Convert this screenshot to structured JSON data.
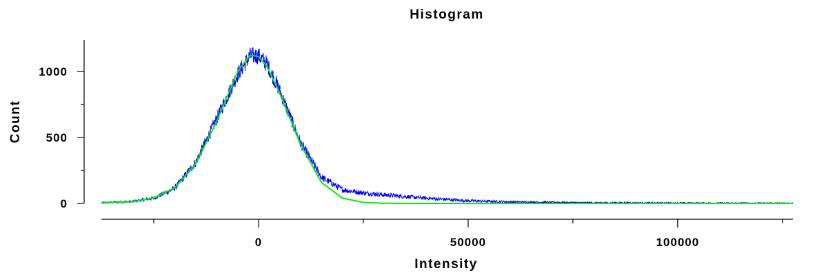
{
  "chart_data": {
    "type": "line",
    "title": "Histogram",
    "xlabel": "Intensity",
    "ylabel": "Count",
    "xlim": [
      -37500,
      127500
    ],
    "ylim": [
      0,
      1220
    ],
    "x_ticks": [
      {
        "value": 0,
        "label": "0"
      },
      {
        "value": 50000,
        "label": "50000"
      },
      {
        "value": 100000,
        "label": "100000"
      }
    ],
    "x_minor_ticks": [
      -25000,
      25000,
      75000,
      125000
    ],
    "y_ticks": [
      {
        "value": 0,
        "label": "0"
      },
      {
        "value": 500,
        "label": "500"
      },
      {
        "value": 1000,
        "label": "1000"
      }
    ],
    "y_minor_ticks": [
      250,
      750
    ],
    "grid": false,
    "series": [
      {
        "color": "#0000ff",
        "style": "noisy-histogram",
        "x": [
          -37500,
          -30000,
          -25000,
          -20000,
          -15000,
          -10000,
          -5000,
          -2000,
          0,
          2000,
          5000,
          10000,
          15000,
          20000,
          25000,
          30000,
          40000,
          50000,
          60000,
          70000,
          80000,
          100000,
          127500
        ],
        "values": [
          5,
          15,
          40,
          115,
          310,
          640,
          980,
          1120,
          1120,
          1060,
          860,
          460,
          200,
          105,
          80,
          65,
          40,
          20,
          12,
          8,
          5,
          3,
          2
        ]
      },
      {
        "color": "#00ee00",
        "style": "gaussian-fit",
        "x": [
          -37500,
          -30000,
          -25000,
          -20000,
          -15000,
          -10000,
          -5000,
          -2000,
          0,
          2000,
          5000,
          10000,
          15000,
          20000,
          25000,
          30000,
          40000,
          50000,
          127500
        ],
        "values": [
          4,
          14,
          42,
          118,
          300,
          620,
          1000,
          1125,
          1115,
          1040,
          840,
          450,
          160,
          40,
          8,
          1,
          0,
          0,
          0
        ]
      }
    ]
  }
}
